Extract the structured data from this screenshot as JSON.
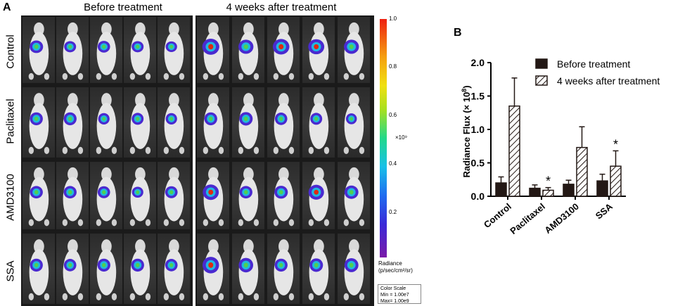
{
  "panel_a": {
    "label": "A",
    "column_headers": [
      "Before treatment",
      "4 weeks after treatment"
    ],
    "row_labels": [
      "Control",
      "Paclitaxel",
      "AMD3100",
      "SSA"
    ],
    "colorbar": {
      "ticks": [
        "1.0",
        "0.8",
        "0.6",
        "0.4",
        "0.2"
      ],
      "multiplier": "×10⁹",
      "unit_line1": "Radiance",
      "unit_line2": "(p/sec/cm²/sr)",
      "scale_title": "Color Scale",
      "scale_min": "Min = 1.00e7",
      "scale_max": "Max= 1.00e9"
    }
  },
  "panel_b": {
    "label": "B"
  },
  "chart_data": {
    "type": "bar",
    "title": "",
    "xlabel": "",
    "ylabel_prefix": "Radiance Flux (× 10",
    "ylabel_exp": "8",
    "ylabel_suffix": ")",
    "ylim": [
      0,
      2.0
    ],
    "yticks": [
      "0.0",
      "0.5",
      "1.0",
      "1.5",
      "2.0"
    ],
    "categories": [
      "Control",
      "Paclitaxel",
      "AMD3100",
      "SSA"
    ],
    "series": [
      {
        "name": "Before treatment",
        "values": [
          0.2,
          0.12,
          0.18,
          0.23
        ],
        "errors": [
          0.09,
          0.05,
          0.06,
          0.1
        ],
        "style": "solid",
        "color": "#231815"
      },
      {
        "name": "4 weeks after treatment",
        "values": [
          1.35,
          0.09,
          0.73,
          0.45
        ],
        "errors": [
          0.42,
          0.04,
          0.31,
          0.23
        ],
        "style": "hatched",
        "color": "#231815"
      }
    ],
    "annotations": [
      {
        "category": "Paclitaxel",
        "series": "4 weeks after treatment",
        "text": "*"
      },
      {
        "category": "SSA",
        "series": "4 weeks after treatment",
        "text": "*"
      }
    ],
    "legend_position": "top-right"
  }
}
